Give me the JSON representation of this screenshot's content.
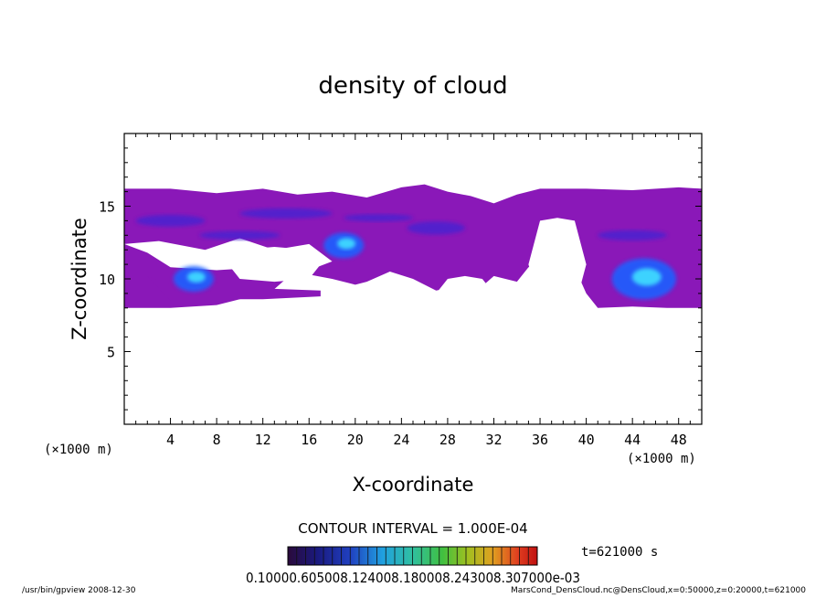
{
  "chart_data": {
    "type": "heatmap",
    "title": "density of cloud",
    "xlabel": "X-coordinate",
    "ylabel": "Z-coordinate",
    "x_unit": "(×1000 m)",
    "y_unit": "(×1000 m)",
    "xlim": [
      0,
      50
    ],
    "ylim": [
      0,
      20
    ],
    "x_ticks": [
      4,
      8,
      12,
      16,
      20,
      24,
      28,
      32,
      36,
      40,
      44,
      48
    ],
    "y_ticks": [
      5,
      10,
      15
    ],
    "grid": false,
    "cloud_base_km": 8,
    "cloud_top_km": 16.5,
    "clear_gaps": [
      {
        "x": [
          9,
          17
        ],
        "z": [
          10,
          12
        ],
        "note": "clear gap"
      },
      {
        "x": [
          27,
          32
        ],
        "z": [
          8,
          10
        ]
      },
      {
        "x": [
          35,
          40
        ],
        "z": [
          8,
          14
        ]
      }
    ],
    "dense_regions": [
      {
        "x_center": 6,
        "z_center": 10,
        "intensity": "high"
      },
      {
        "x_center": 19,
        "z_center": 12.3,
        "intensity": "high"
      },
      {
        "x_center": 45,
        "z_center": 10,
        "intensity": "highest"
      }
    ],
    "contour_interval": "CONTOUR INTERVAL = 1.000E-04",
    "colorbar": {
      "labels_text": "0.10000.605008.124008.180008.243008.307000e-03",
      "colors": [
        "#2a0a3a",
        "#1a1a80",
        "#2040c0",
        "#20a0e0",
        "#30c0a0",
        "#40c040",
        "#a0c020",
        "#e0a020",
        "#e04020",
        "#c01010"
      ]
    },
    "time_label": "t=621000 s",
    "colors": {
      "background_cloud": "#8a18b8",
      "mid_density": "#4820d0",
      "high_density": "#1e60ff",
      "peak_density": "#40e0ff"
    }
  },
  "footer": {
    "left": "/usr/bin/gpview  2008-12-30",
    "right": "MarsCond_DensCloud.nc@DensCloud,x=0:50000,z=0:20000,t=621000"
  }
}
